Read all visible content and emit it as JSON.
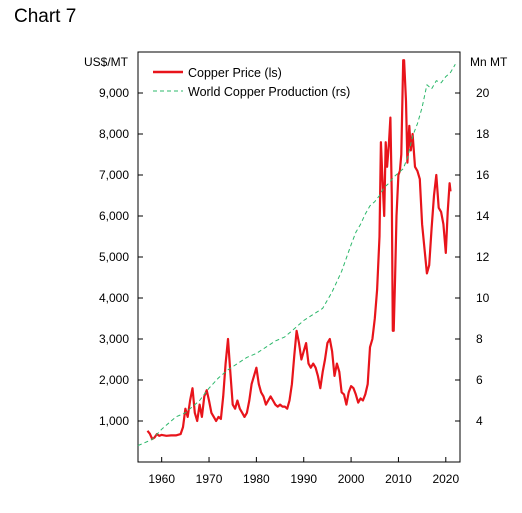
{
  "page": {
    "title": "Chart 7"
  },
  "chart_data": {
    "type": "line",
    "title": "",
    "xlabel": "",
    "ylabel_left": "US$/MT",
    "ylabel_right": "Mn MT",
    "xlim": [
      1955,
      2023
    ],
    "ylim_left": [
      0,
      10000
    ],
    "ylim_right": [
      2,
      22
    ],
    "x_ticks": [
      1960,
      1970,
      1980,
      1990,
      2000,
      2010,
      2020
    ],
    "x_tick_labels": [
      "1960",
      "1970",
      "1980",
      "1990",
      "2000",
      "2010",
      "2020"
    ],
    "y_left_ticks": [
      1000,
      2000,
      3000,
      4000,
      5000,
      6000,
      7000,
      8000,
      9000
    ],
    "y_left_tick_labels": [
      "1,000",
      "2,000",
      "3,000",
      "4,000",
      "5,000",
      "6,000",
      "7,000",
      "8,000",
      "9,000"
    ],
    "y_right_ticks": [
      4,
      6,
      8,
      10,
      12,
      14,
      16,
      18,
      20
    ],
    "y_right_tick_labels": [
      "4",
      "6",
      "8",
      "10",
      "12",
      "14",
      "16",
      "18",
      "20"
    ],
    "grid": false,
    "legend_position": "top-left",
    "colors": {
      "price": "#e8141b",
      "production": "#2db86b"
    },
    "series": [
      {
        "name": "Copper Price (ls)",
        "axis": "left",
        "style": "solid",
        "points": [
          [
            1957.0,
            760
          ],
          [
            1957.5,
            690
          ],
          [
            1958.0,
            560
          ],
          [
            1958.5,
            600
          ],
          [
            1959.0,
            680
          ],
          [
            1959.5,
            640
          ],
          [
            1960.0,
            660
          ],
          [
            1961.0,
            640
          ],
          [
            1962.0,
            650
          ],
          [
            1963.0,
            650
          ],
          [
            1964.0,
            680
          ],
          [
            1964.5,
            850
          ],
          [
            1965.0,
            1300
          ],
          [
            1965.5,
            1100
          ],
          [
            1966.0,
            1500
          ],
          [
            1966.5,
            1800
          ],
          [
            1967.0,
            1200
          ],
          [
            1967.5,
            1000
          ],
          [
            1968.0,
            1400
          ],
          [
            1968.5,
            1100
          ],
          [
            1969.0,
            1600
          ],
          [
            1969.5,
            1750
          ],
          [
            1970.0,
            1500
          ],
          [
            1970.5,
            1200
          ],
          [
            1971.0,
            1100
          ],
          [
            1971.5,
            1000
          ],
          [
            1972.0,
            1100
          ],
          [
            1972.5,
            1050
          ],
          [
            1973.0,
            1600
          ],
          [
            1973.5,
            2400
          ],
          [
            1974.0,
            3000
          ],
          [
            1974.5,
            2200
          ],
          [
            1975.0,
            1400
          ],
          [
            1975.5,
            1300
          ],
          [
            1976.0,
            1500
          ],
          [
            1976.5,
            1300
          ],
          [
            1977.0,
            1200
          ],
          [
            1977.5,
            1100
          ],
          [
            1978.0,
            1200
          ],
          [
            1978.5,
            1500
          ],
          [
            1979.0,
            1900
          ],
          [
            1979.5,
            2100
          ],
          [
            1980.0,
            2300
          ],
          [
            1980.5,
            1900
          ],
          [
            1981.0,
            1700
          ],
          [
            1981.5,
            1600
          ],
          [
            1982.0,
            1400
          ],
          [
            1982.5,
            1500
          ],
          [
            1983.0,
            1600
          ],
          [
            1983.5,
            1500
          ],
          [
            1984.0,
            1400
          ],
          [
            1984.5,
            1350
          ],
          [
            1985.0,
            1400
          ],
          [
            1985.5,
            1350
          ],
          [
            1986.0,
            1350
          ],
          [
            1986.5,
            1300
          ],
          [
            1987.0,
            1500
          ],
          [
            1987.5,
            1900
          ],
          [
            1988.0,
            2600
          ],
          [
            1988.5,
            3200
          ],
          [
            1989.0,
            2900
          ],
          [
            1989.5,
            2500
          ],
          [
            1990.0,
            2700
          ],
          [
            1990.5,
            2900
          ],
          [
            1991.0,
            2400
          ],
          [
            1991.5,
            2300
          ],
          [
            1992.0,
            2400
          ],
          [
            1992.5,
            2300
          ],
          [
            1993.0,
            2100
          ],
          [
            1993.5,
            1800
          ],
          [
            1994.0,
            2200
          ],
          [
            1994.5,
            2500
          ],
          [
            1995.0,
            2900
          ],
          [
            1995.5,
            3000
          ],
          [
            1996.0,
            2700
          ],
          [
            1996.5,
            2100
          ],
          [
            1997.0,
            2400
          ],
          [
            1997.5,
            2200
          ],
          [
            1998.0,
            1700
          ],
          [
            1998.5,
            1650
          ],
          [
            1999.0,
            1400
          ],
          [
            1999.5,
            1700
          ],
          [
            2000.0,
            1850
          ],
          [
            2000.5,
            1800
          ],
          [
            2001.0,
            1650
          ],
          [
            2001.5,
            1450
          ],
          [
            2002.0,
            1550
          ],
          [
            2002.5,
            1500
          ],
          [
            2003.0,
            1650
          ],
          [
            2003.5,
            1900
          ],
          [
            2004.0,
            2800
          ],
          [
            2004.5,
            3000
          ],
          [
            2005.0,
            3500
          ],
          [
            2005.5,
            4200
          ],
          [
            2006.0,
            5500
          ],
          [
            2006.3,
            7800
          ],
          [
            2006.6,
            7000
          ],
          [
            2007.0,
            6000
          ],
          [
            2007.3,
            7800
          ],
          [
            2007.6,
            7200
          ],
          [
            2008.0,
            7800
          ],
          [
            2008.3,
            8400
          ],
          [
            2008.6,
            6500
          ],
          [
            2008.8,
            3200
          ],
          [
            2009.0,
            3200
          ],
          [
            2009.3,
            4500
          ],
          [
            2009.6,
            6000
          ],
          [
            2010.0,
            7000
          ],
          [
            2010.3,
            7100
          ],
          [
            2010.6,
            7500
          ],
          [
            2011.0,
            9800
          ],
          [
            2011.2,
            9800
          ],
          [
            2011.6,
            8800
          ],
          [
            2011.9,
            7300
          ],
          [
            2012.3,
            8200
          ],
          [
            2012.6,
            7600
          ],
          [
            2013.0,
            8000
          ],
          [
            2013.5,
            7200
          ],
          [
            2014.0,
            7100
          ],
          [
            2014.5,
            6900
          ],
          [
            2015.0,
            5800
          ],
          [
            2015.5,
            5200
          ],
          [
            2016.0,
            4600
          ],
          [
            2016.5,
            4800
          ],
          [
            2017.0,
            5700
          ],
          [
            2017.5,
            6500
          ],
          [
            2018.0,
            7000
          ],
          [
            2018.5,
            6200
          ],
          [
            2019.0,
            6100
          ],
          [
            2019.5,
            5800
          ],
          [
            2020.0,
            5100
          ],
          [
            2020.4,
            6100
          ],
          [
            2020.8,
            6800
          ],
          [
            2021.0,
            6600
          ]
        ]
      },
      {
        "name": "World Copper Production (rs)",
        "axis": "right",
        "style": "dashed",
        "points": [
          [
            1955,
            2.8
          ],
          [
            1957,
            3.0
          ],
          [
            1958,
            3.1
          ],
          [
            1960,
            3.6
          ],
          [
            1963,
            4.2
          ],
          [
            1965,
            4.4
          ],
          [
            1968,
            5.0
          ],
          [
            1970,
            5.6
          ],
          [
            1972,
            6.1
          ],
          [
            1974,
            6.5
          ],
          [
            1976,
            6.8
          ],
          [
            1978,
            7.1
          ],
          [
            1980,
            7.3
          ],
          [
            1982,
            7.6
          ],
          [
            1984,
            7.9
          ],
          [
            1986,
            8.1
          ],
          [
            1988,
            8.5
          ],
          [
            1990,
            8.9
          ],
          [
            1992,
            9.2
          ],
          [
            1994,
            9.5
          ],
          [
            1996,
            10.3
          ],
          [
            1998,
            11.3
          ],
          [
            2000,
            12.6
          ],
          [
            2001,
            13.2
          ],
          [
            2002,
            13.6
          ],
          [
            2003,
            14.1
          ],
          [
            2004,
            14.5
          ],
          [
            2005,
            14.7
          ],
          [
            2006,
            15.0
          ],
          [
            2007,
            15.4
          ],
          [
            2008,
            15.6
          ],
          [
            2009,
            15.9
          ],
          [
            2010,
            16.1
          ],
          [
            2011,
            16.3
          ],
          [
            2012,
            16.9
          ],
          [
            2013,
            17.9
          ],
          [
            2014,
            18.5
          ],
          [
            2015,
            19.3
          ],
          [
            2016,
            20.4
          ],
          [
            2017,
            20.2
          ],
          [
            2018,
            20.6
          ],
          [
            2019,
            20.5
          ],
          [
            2020,
            20.8
          ],
          [
            2021,
            21.0
          ],
          [
            2022,
            21.4
          ]
        ]
      }
    ]
  }
}
